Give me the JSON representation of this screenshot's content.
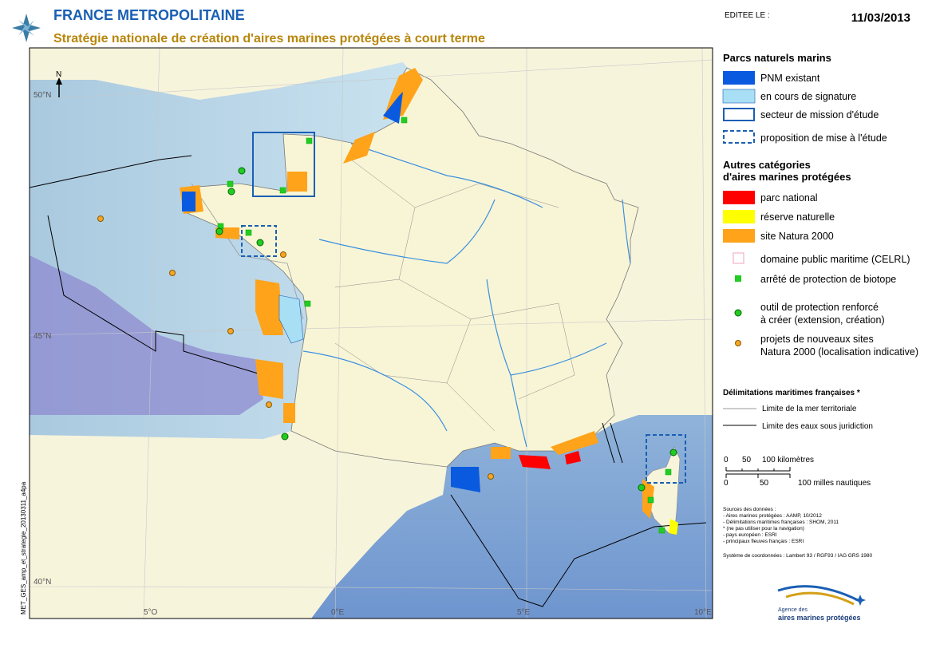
{
  "header": {
    "title": "FRANCE METROPOLITAINE",
    "subtitle": "Stratégie nationale de création d'aires marines protégées à court terme",
    "edited_label": "EDITEE LE :",
    "date": "11/03/2013"
  },
  "map": {
    "lat_labels": [
      "50°N",
      "45°N",
      "40°N"
    ],
    "lon_labels": [
      "5°O",
      "0°E",
      "5°E",
      "10°E"
    ],
    "file_name": "MET_GES_amp_et_strategie_20130311_a4pa"
  },
  "legend": {
    "parcs": {
      "title": "Parcs naturels marins",
      "items": [
        "PNM existant",
        "en cours de signature",
        "secteur de mission d'étude",
        "proposition de mise à l'étude"
      ]
    },
    "autres": {
      "title_line1": "Autres catégories",
      "title_line2": "d'aires marines protégées",
      "items": [
        "parc national",
        "réserve naturelle",
        "site Natura 2000",
        "domaine public maritime (CELRL)",
        "arrêté de protection de biotope",
        [
          "outil de protection renforcé",
          "à créer (extension, création)"
        ],
        [
          "projets de nouveaux sites",
          "Natura 2000 (localisation indicative)"
        ]
      ]
    },
    "limits": {
      "title": "Délimitations maritimes françaises *",
      "items": [
        "Limite de la mer territoriale",
        "Limite des eaux sous juridiction"
      ]
    }
  },
  "scale": {
    "km": [
      "0",
      "50",
      "100 kilomètres"
    ],
    "nm": [
      "0",
      "50",
      "100 milles nautiques"
    ]
  },
  "sources": [
    "Sources des données :",
    "- Aires marines protégées : AAMP, 10/2012",
    "- Délimitations maritimes françaises : SHOM, 2011",
    "* (ne pas utiliser pour la navigation)",
    "- pays européen : ESRI",
    "- principaux fleuves français : ESRI",
    "Système de coordonnées : Lambert 93 / RGF93 / IAG GRS 1980"
  ],
  "logo": {
    "line1": "Agence des",
    "line2": "aires marines protégées"
  }
}
